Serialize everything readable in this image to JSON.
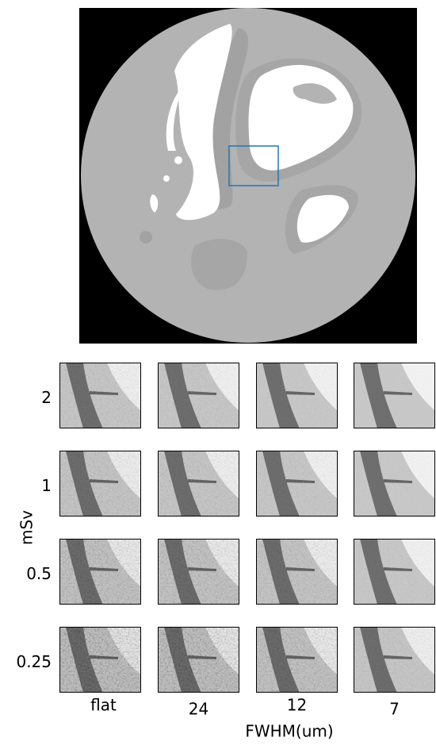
{
  "figure": {
    "row_labels": [
      "2",
      "1",
      "0.5",
      "0.25"
    ],
    "column_labels": [
      "flat",
      "24",
      "12",
      "7"
    ],
    "y_label": "mSv",
    "x_label": "FWHM(um)"
  }
}
